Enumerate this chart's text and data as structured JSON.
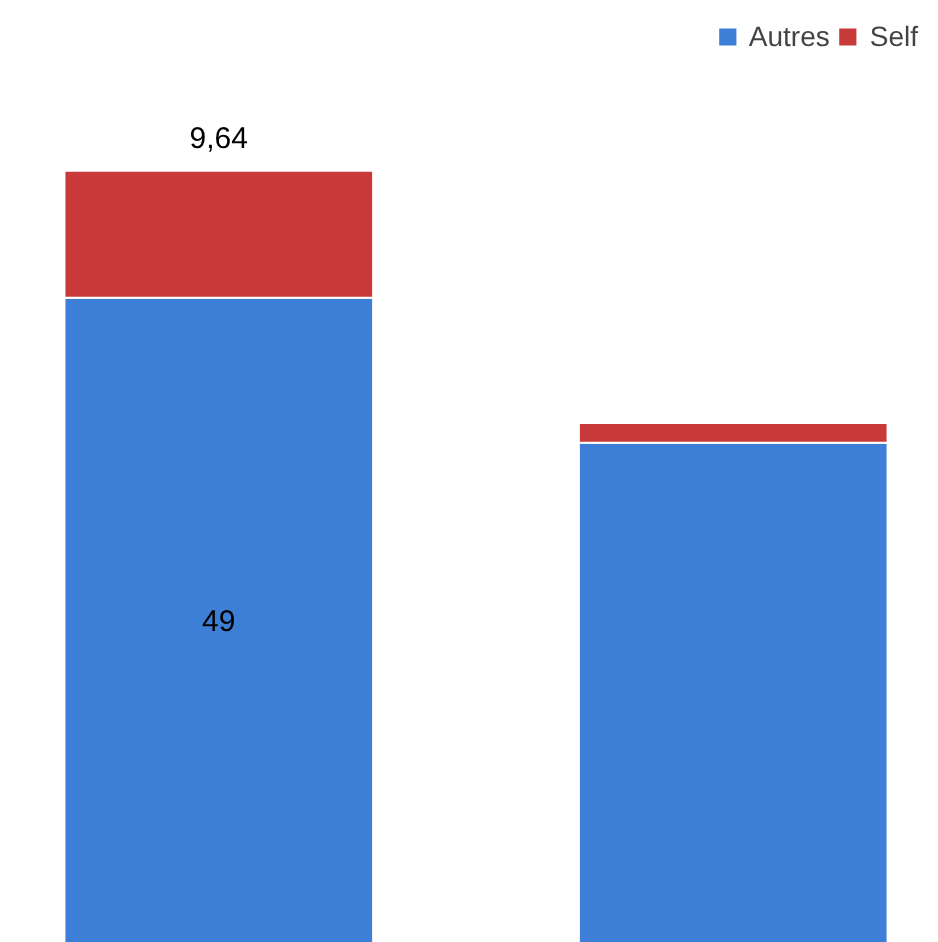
{
  "chart_data": {
    "type": "bar",
    "stacked": true,
    "categories": [
      null,
      null
    ],
    "series": [
      {
        "name": "Autres",
        "color": "#3d7fd6",
        "values": [
          49,
          38
        ],
        "value_labels": [
          "49",
          null
        ]
      },
      {
        "name": "Self",
        "color": "#c83a3a",
        "values": [
          9.64,
          1.5
        ],
        "value_labels": [
          "9,64",
          null
        ]
      }
    ],
    "legend": "top right",
    "grid": false
  }
}
